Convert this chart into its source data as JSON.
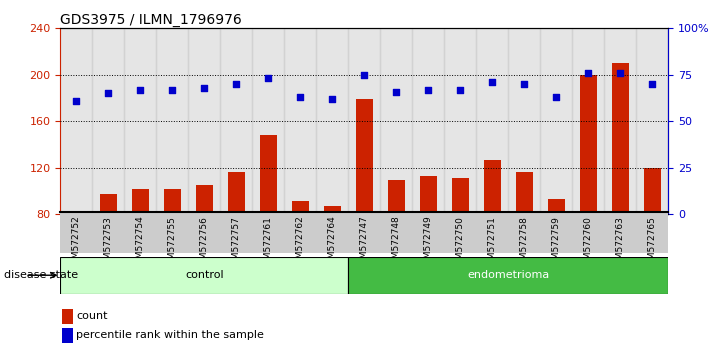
{
  "title": "GDS3975 / ILMN_1796976",
  "samples": [
    "GSM572752",
    "GSM572753",
    "GSM572754",
    "GSM572755",
    "GSM572756",
    "GSM572757",
    "GSM572761",
    "GSM572762",
    "GSM572764",
    "GSM572747",
    "GSM572748",
    "GSM572749",
    "GSM572750",
    "GSM572751",
    "GSM572758",
    "GSM572759",
    "GSM572760",
    "GSM572763",
    "GSM572765"
  ],
  "counts": [
    82,
    97,
    102,
    102,
    105,
    116,
    148,
    91,
    87,
    179,
    109,
    113,
    111,
    127,
    116,
    93,
    200,
    210,
    120
  ],
  "percentile_ranks": [
    61,
    65,
    67,
    67,
    68,
    70,
    73,
    63,
    62,
    75,
    66,
    67,
    67,
    71,
    70,
    63,
    76,
    76,
    70
  ],
  "control_count": 9,
  "endometrioma_count": 10,
  "ylim_left": [
    80,
    240
  ],
  "ylim_right": [
    0,
    100
  ],
  "yticks_left": [
    80,
    120,
    160,
    200,
    240
  ],
  "yticks_right": [
    0,
    25,
    50,
    75,
    100
  ],
  "ytick_labels_right": [
    "0",
    "25",
    "50",
    "75",
    "100%"
  ],
  "bar_color": "#cc2200",
  "dot_color": "#0000cc",
  "control_bg": "#ccffcc",
  "endo_bg": "#44bb44",
  "col_bg": "#cccccc",
  "label_count": "count",
  "label_percentile": "percentile rank within the sample",
  "disease_state_label": "disease state",
  "control_label": "control",
  "endo_label": "endometrioma"
}
